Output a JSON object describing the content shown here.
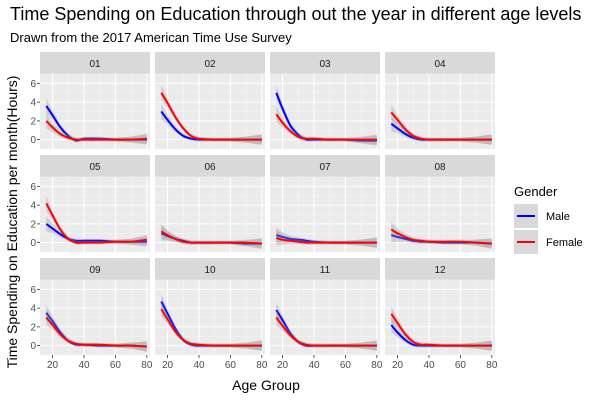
{
  "chart_data": {
    "type": "line",
    "title": "Time Spending on Education through out the year in different age levels",
    "subtitle": "Drawn from the 2017 American Time Use Survey",
    "xlabel": "Age Group",
    "ylabel": "Time Spending on Education per month(Hours)",
    "xlim": [
      12,
      82
    ],
    "ylim": [
      -1,
      7
    ],
    "x_ticks": [
      20,
      40,
      60,
      80
    ],
    "y_ticks": [
      0,
      2,
      4,
      6
    ],
    "grid": true,
    "confidence_band": true,
    "legend": {
      "title": "Gender",
      "position": "right",
      "entries": [
        {
          "label": "Male",
          "color": "#0000ff"
        },
        {
          "label": "Female",
          "color": "#ff0000"
        }
      ]
    },
    "x": [
      16,
      20,
      25,
      30,
      35,
      40,
      50,
      60,
      70,
      80
    ],
    "panels": [
      {
        "label": "01",
        "series": [
          {
            "name": "Male",
            "values": [
              3.6,
              2.6,
              1.3,
              0.4,
              -0.1,
              0.1,
              0.1,
              0.0,
              0.0,
              0.0
            ]
          },
          {
            "name": "Female",
            "values": [
              2.0,
              1.3,
              0.6,
              0.2,
              0.0,
              0.0,
              0.0,
              0.0,
              0.0,
              0.1
            ]
          }
        ]
      },
      {
        "label": "02",
        "series": [
          {
            "name": "Male",
            "values": [
              3.0,
              2.1,
              1.1,
              0.4,
              0.1,
              0.0,
              0.0,
              0.0,
              0.0,
              0.0
            ]
          },
          {
            "name": "Female",
            "values": [
              5.0,
              3.9,
              2.4,
              1.2,
              0.4,
              0.1,
              0.0,
              0.0,
              0.0,
              0.0
            ]
          }
        ]
      },
      {
        "label": "03",
        "series": [
          {
            "name": "Male",
            "values": [
              5.0,
              3.3,
              1.5,
              0.5,
              0.0,
              0.0,
              0.0,
              0.0,
              -0.1,
              -0.1
            ]
          },
          {
            "name": "Female",
            "values": [
              2.7,
              1.8,
              0.9,
              0.3,
              0.1,
              0.1,
              0.0,
              0.0,
              0.0,
              0.0
            ]
          }
        ]
      },
      {
        "label": "04",
        "series": [
          {
            "name": "Male",
            "values": [
              1.7,
              1.2,
              0.6,
              0.2,
              0.0,
              0.0,
              0.0,
              0.0,
              0.0,
              0.0
            ]
          },
          {
            "name": "Female",
            "values": [
              2.9,
              2.1,
              1.1,
              0.4,
              0.1,
              0.0,
              0.0,
              0.0,
              0.0,
              0.0
            ]
          }
        ]
      },
      {
        "label": "05",
        "series": [
          {
            "name": "Male",
            "values": [
              2.0,
              1.5,
              0.9,
              0.4,
              0.2,
              0.2,
              0.2,
              0.1,
              0.1,
              0.1
            ]
          },
          {
            "name": "Female",
            "values": [
              4.2,
              2.9,
              1.4,
              0.4,
              0.0,
              0.0,
              0.0,
              0.1,
              0.1,
              0.3
            ]
          }
        ]
      },
      {
        "label": "06",
        "series": [
          {
            "name": "Male",
            "values": [
              1.0,
              0.7,
              0.4,
              0.2,
              0.0,
              0.0,
              0.0,
              0.0,
              -0.1,
              -0.1
            ]
          },
          {
            "name": "Female",
            "values": [
              1.2,
              0.8,
              0.4,
              0.1,
              0.0,
              0.0,
              0.0,
              0.0,
              0.0,
              -0.1
            ]
          }
        ]
      },
      {
        "label": "07",
        "series": [
          {
            "name": "Male",
            "values": [
              0.8,
              0.6,
              0.4,
              0.3,
              0.2,
              0.1,
              0.0,
              0.0,
              0.0,
              0.0
            ]
          },
          {
            "name": "Female",
            "values": [
              0.5,
              0.3,
              0.2,
              0.1,
              0.0,
              0.0,
              0.0,
              0.0,
              0.0,
              0.0
            ]
          }
        ]
      },
      {
        "label": "08",
        "series": [
          {
            "name": "Male",
            "values": [
              0.8,
              0.6,
              0.4,
              0.2,
              0.1,
              0.1,
              0.0,
              0.0,
              0.0,
              -0.1
            ]
          },
          {
            "name": "Female",
            "values": [
              1.4,
              1.0,
              0.6,
              0.3,
              0.2,
              0.1,
              0.1,
              0.1,
              0.0,
              -0.1
            ]
          }
        ]
      },
      {
        "label": "09",
        "series": [
          {
            "name": "Male",
            "values": [
              3.5,
              2.6,
              1.4,
              0.5,
              0.1,
              0.1,
              0.0,
              0.0,
              0.0,
              -0.1
            ]
          },
          {
            "name": "Female",
            "values": [
              3.0,
              2.2,
              1.2,
              0.5,
              0.2,
              0.1,
              0.1,
              0.0,
              0.0,
              -0.1
            ]
          }
        ]
      },
      {
        "label": "10",
        "series": [
          {
            "name": "Male",
            "values": [
              4.7,
              3.4,
              1.8,
              0.6,
              0.1,
              0.0,
              0.0,
              0.0,
              0.0,
              0.0
            ]
          },
          {
            "name": "Female",
            "values": [
              3.9,
              2.8,
              1.5,
              0.6,
              0.2,
              0.1,
              0.0,
              0.0,
              0.0,
              0.0
            ]
          }
        ]
      },
      {
        "label": "11",
        "series": [
          {
            "name": "Male",
            "values": [
              3.8,
              2.7,
              1.3,
              0.4,
              0.0,
              0.0,
              0.0,
              0.0,
              0.0,
              0.0
            ]
          },
          {
            "name": "Female",
            "values": [
              3.0,
              2.1,
              1.1,
              0.4,
              0.1,
              0.0,
              0.0,
              0.0,
              0.0,
              0.0
            ]
          }
        ]
      },
      {
        "label": "12",
        "series": [
          {
            "name": "Male",
            "values": [
              2.2,
              1.4,
              0.6,
              0.1,
              0.0,
              0.0,
              0.0,
              0.0,
              0.0,
              0.0
            ]
          },
          {
            "name": "Female",
            "values": [
              3.4,
              2.4,
              1.2,
              0.4,
              0.1,
              0.1,
              0.0,
              0.0,
              0.0,
              0.0
            ]
          }
        ]
      }
    ]
  }
}
